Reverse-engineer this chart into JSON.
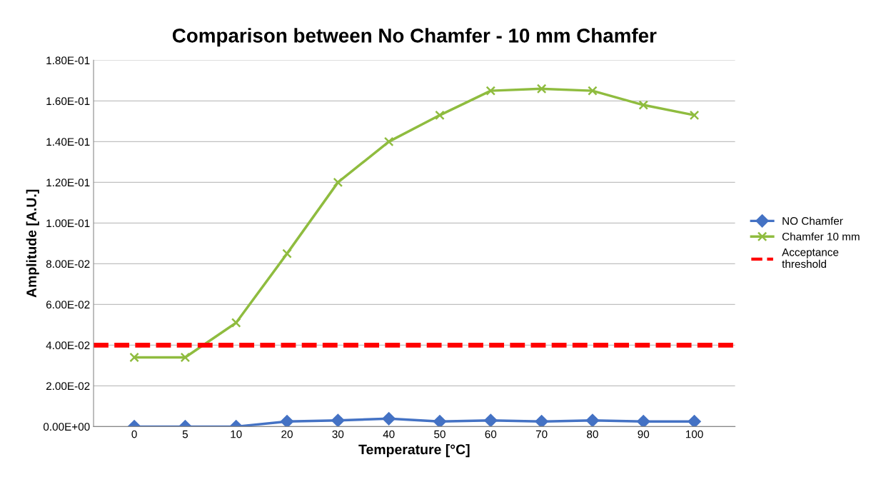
{
  "chart_data": {
    "type": "line",
    "title": "Comparison between No Chamfer - 10 mm Chamfer",
    "xlabel": "Temperature [°C]",
    "ylabel": "Amplitude [A.U.]",
    "categories": [
      "0",
      "5",
      "10",
      "20",
      "30",
      "40",
      "50",
      "60",
      "70",
      "80",
      "90",
      "100"
    ],
    "series": [
      {
        "name": "NO Chamfer",
        "color": "#4472c4",
        "marker": "diamond",
        "values": [
          0,
          0,
          0,
          0.0025,
          0.003,
          0.0039,
          0.0025,
          0.003,
          0.0025,
          0.003,
          0.0025,
          0.0025
        ]
      },
      {
        "name": "Chamfer 10 mm",
        "color": "#8fbc3f",
        "marker": "cross",
        "values": [
          0.034,
          0.034,
          0.051,
          0.085,
          0.12,
          0.14,
          0.153,
          0.165,
          0.166,
          0.165,
          0.158,
          0.153
        ]
      }
    ],
    "ref_lines": [
      {
        "axis": "y",
        "value": 0.04,
        "label": "Acceptance threshold",
        "color": "#ff0000",
        "line_style": "dashed"
      }
    ],
    "ylim": [
      0,
      0.18
    ],
    "yticks": [
      {
        "value": 0,
        "label": "0.00E+00"
      },
      {
        "value": 0.02,
        "label": "2.00E-02"
      },
      {
        "value": 0.04,
        "label": "4.00E-02"
      },
      {
        "value": 0.06,
        "label": "6.00E-02"
      },
      {
        "value": 0.08,
        "label": "8.00E-02"
      },
      {
        "value": 0.1,
        "label": "1.00E-01"
      },
      {
        "value": 0.12,
        "label": "1.20E-01"
      },
      {
        "value": 0.14,
        "label": "1.40E-01"
      },
      {
        "value": 0.16,
        "label": "1.60E-01"
      },
      {
        "value": 0.18,
        "label": "1.80E-01"
      }
    ],
    "grid": "y",
    "legend": "right",
    "line_style": "solid"
  }
}
